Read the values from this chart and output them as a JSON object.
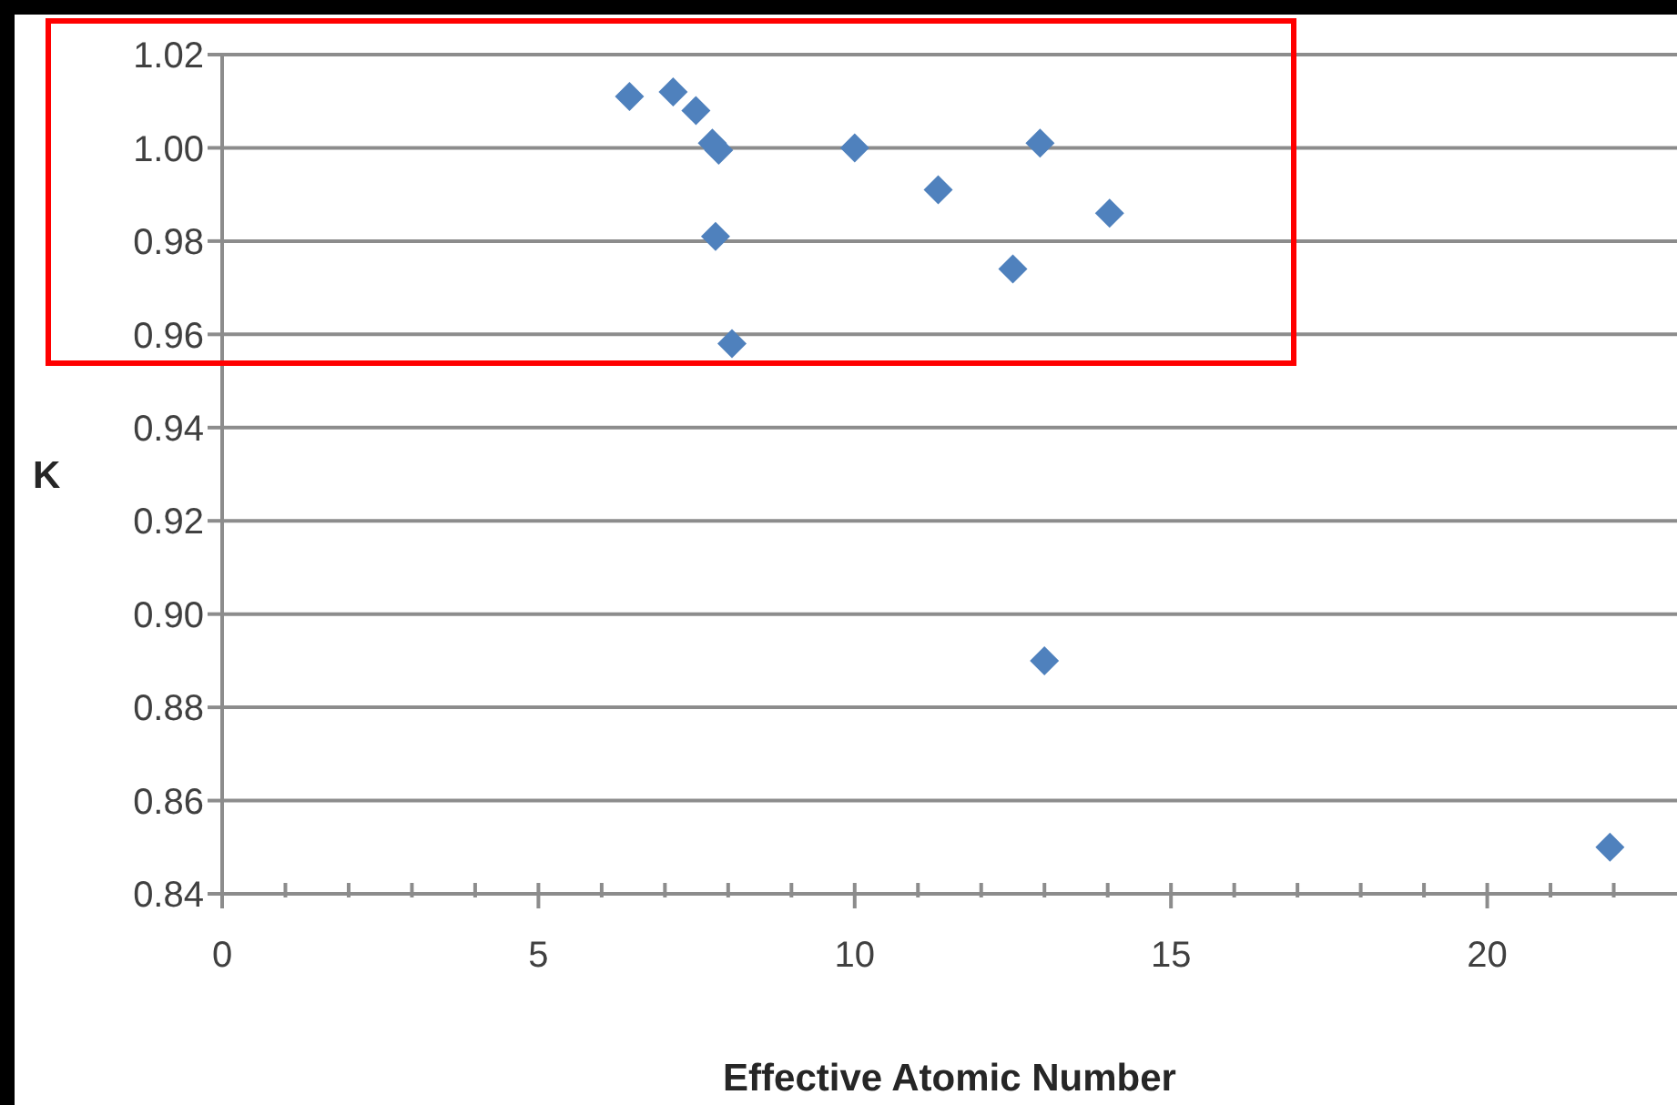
{
  "chart_data": {
    "type": "scatter",
    "xlabel": "Effective Atomic Number",
    "ylabel": "K",
    "x": [
      6.44,
      7.13,
      7.49,
      7.75,
      7.85,
      7.8,
      8.06,
      10.0,
      11.32,
      12.93,
      14.03,
      12.5,
      13.0,
      21.94
    ],
    "series": [
      {
        "color": "#4f81bd",
        "values": [
          1.011,
          1.012,
          1.008,
          1.001,
          0.9995,
          0.981,
          0.958,
          1.0,
          0.991,
          1.001,
          0.986,
          0.974,
          0.89,
          0.85
        ]
      }
    ],
    "xlim": [
      0,
      23
    ],
    "xticks": [
      0,
      {
        "value": 1,
        "label": null
      },
      {
        "value": 2,
        "label": null
      },
      {
        "value": 3,
        "label": null
      },
      {
        "value": 4,
        "label": null
      },
      5,
      {
        "value": 6,
        "label": null
      },
      {
        "value": 7,
        "label": null
      },
      {
        "value": 8,
        "label": null
      },
      {
        "value": 9,
        "label": null
      },
      10,
      {
        "value": 11,
        "label": null
      },
      {
        "value": 12,
        "label": null
      },
      {
        "value": 13,
        "label": null
      },
      {
        "value": 14,
        "label": null
      },
      15,
      {
        "value": 16,
        "label": null
      },
      {
        "value": 17,
        "label": null
      },
      {
        "value": 18,
        "label": null
      },
      {
        "value": 19,
        "label": null
      },
      20,
      {
        "value": 21,
        "label": null
      },
      {
        "value": 22,
        "label": null
      }
    ],
    "ylim": [
      0.84,
      1.02
    ],
    "yticks": [
      {
        "value": 0.84,
        "label": "0.84"
      },
      {
        "value": 0.86,
        "label": "0.86"
      },
      {
        "value": 0.88,
        "label": "0.88"
      },
      {
        "value": 0.9,
        "label": "0.90"
      },
      {
        "value": 0.92,
        "label": "0.92"
      },
      {
        "value": 0.94,
        "label": "0.94"
      },
      {
        "value": 0.96,
        "label": "0.96"
      },
      {
        "value": 0.98,
        "label": "0.98"
      },
      {
        "value": 1.0,
        "label": "1.00"
      },
      {
        "value": 1.02,
        "label": "1.02"
      }
    ],
    "grid": "y",
    "marker": "diamond"
  }
}
